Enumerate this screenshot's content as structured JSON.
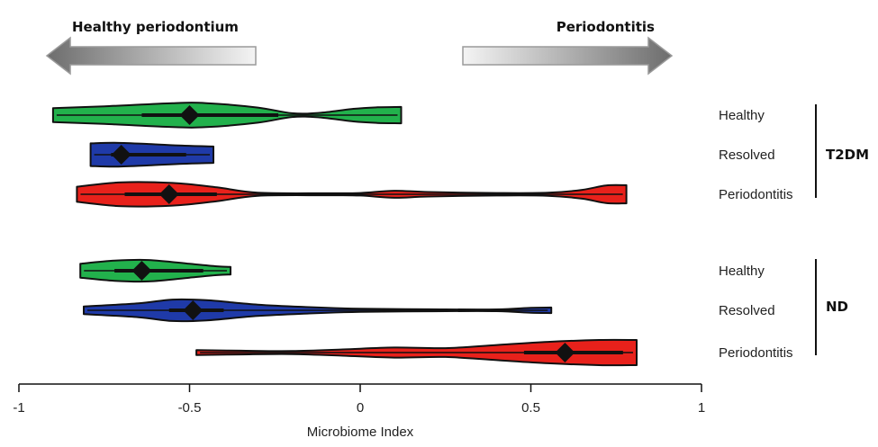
{
  "chart_data": {
    "type": "violin",
    "xlabel": "Microbiome Index",
    "xlim": [
      -1,
      1
    ],
    "xticks": [
      -1,
      -0.5,
      0,
      0.5,
      1
    ],
    "xtick_labels": [
      "-1",
      "-0.5",
      "0",
      "0.5",
      "1"
    ],
    "arrows": {
      "left": "Healthy periodontium",
      "right": "Periodontitis"
    },
    "colors": {
      "Healthy": "#22b14c",
      "Resolved": "#1f3aa8",
      "Periodontitis": "#e8211b"
    },
    "groups": [
      {
        "name": "T2DM",
        "violins": [
          {
            "category": "Healthy",
            "min": -0.9,
            "max": 0.12,
            "q1": -0.64,
            "q3": -0.24,
            "median": -0.5,
            "density": [
              [
                -0.9,
                0.55
              ],
              [
                -0.75,
                0.7
              ],
              [
                -0.55,
                0.95
              ],
              [
                -0.45,
                0.95
              ],
              [
                -0.3,
                0.6
              ],
              [
                -0.2,
                0.15
              ],
              [
                -0.12,
                0.18
              ],
              [
                -0.02,
                0.5
              ],
              [
                0.05,
                0.62
              ],
              [
                0.12,
                0.65
              ]
            ]
          },
          {
            "category": "Resolved",
            "min": -0.79,
            "max": -0.43,
            "q1": -0.73,
            "q3": -0.51,
            "median": -0.7,
            "density": [
              [
                -0.79,
                0.9
              ],
              [
                -0.72,
                0.95
              ],
              [
                -0.62,
                0.85
              ],
              [
                -0.52,
                0.72
              ],
              [
                -0.43,
                0.65
              ]
            ]
          },
          {
            "category": "Periodontitis",
            "min": -0.83,
            "max": 0.78,
            "q1": -0.69,
            "q3": -0.42,
            "median": -0.56,
            "density": [
              [
                -0.83,
                0.6
              ],
              [
                -0.7,
                0.95
              ],
              [
                -0.55,
                0.9
              ],
              [
                -0.42,
                0.55
              ],
              [
                -0.3,
                0.12
              ],
              [
                -0.1,
                0.08
              ],
              [
                0.0,
                0.1
              ],
              [
                0.1,
                0.28
              ],
              [
                0.2,
                0.18
              ],
              [
                0.4,
                0.1
              ],
              [
                0.55,
                0.12
              ],
              [
                0.65,
                0.35
              ],
              [
                0.72,
                0.7
              ],
              [
                0.78,
                0.72
              ]
            ]
          }
        ]
      },
      {
        "name": "ND",
        "violins": [
          {
            "category": "Healthy",
            "min": -0.82,
            "max": -0.38,
            "q1": -0.72,
            "q3": -0.46,
            "median": -0.64,
            "density": [
              [
                -0.82,
                0.55
              ],
              [
                -0.72,
                0.8
              ],
              [
                -0.62,
                0.85
              ],
              [
                -0.5,
                0.55
              ],
              [
                -0.42,
                0.35
              ],
              [
                -0.38,
                0.3
              ]
            ]
          },
          {
            "category": "Resolved",
            "min": -0.81,
            "max": 0.56,
            "q1": -0.56,
            "q3": -0.4,
            "median": -0.49,
            "density": [
              [
                -0.81,
                0.3
              ],
              [
                -0.65,
                0.55
              ],
              [
                -0.55,
                0.85
              ],
              [
                -0.45,
                0.8
              ],
              [
                -0.3,
                0.45
              ],
              [
                -0.15,
                0.25
              ],
              [
                0.0,
                0.12
              ],
              [
                0.2,
                0.08
              ],
              [
                0.4,
                0.07
              ],
              [
                0.5,
                0.2
              ],
              [
                0.56,
                0.22
              ]
            ]
          },
          {
            "category": "Periodontitis",
            "min": -0.48,
            "max": 0.81,
            "q1": 0.48,
            "q3": 0.77,
            "median": 0.6,
            "density": [
              [
                -0.48,
                0.2
              ],
              [
                -0.35,
                0.15
              ],
              [
                -0.2,
                0.12
              ],
              [
                -0.05,
                0.25
              ],
              [
                0.1,
                0.4
              ],
              [
                0.25,
                0.35
              ],
              [
                0.4,
                0.6
              ],
              [
                0.55,
                0.85
              ],
              [
                0.7,
                1.0
              ],
              [
                0.81,
                1.0
              ]
            ]
          }
        ]
      }
    ]
  }
}
